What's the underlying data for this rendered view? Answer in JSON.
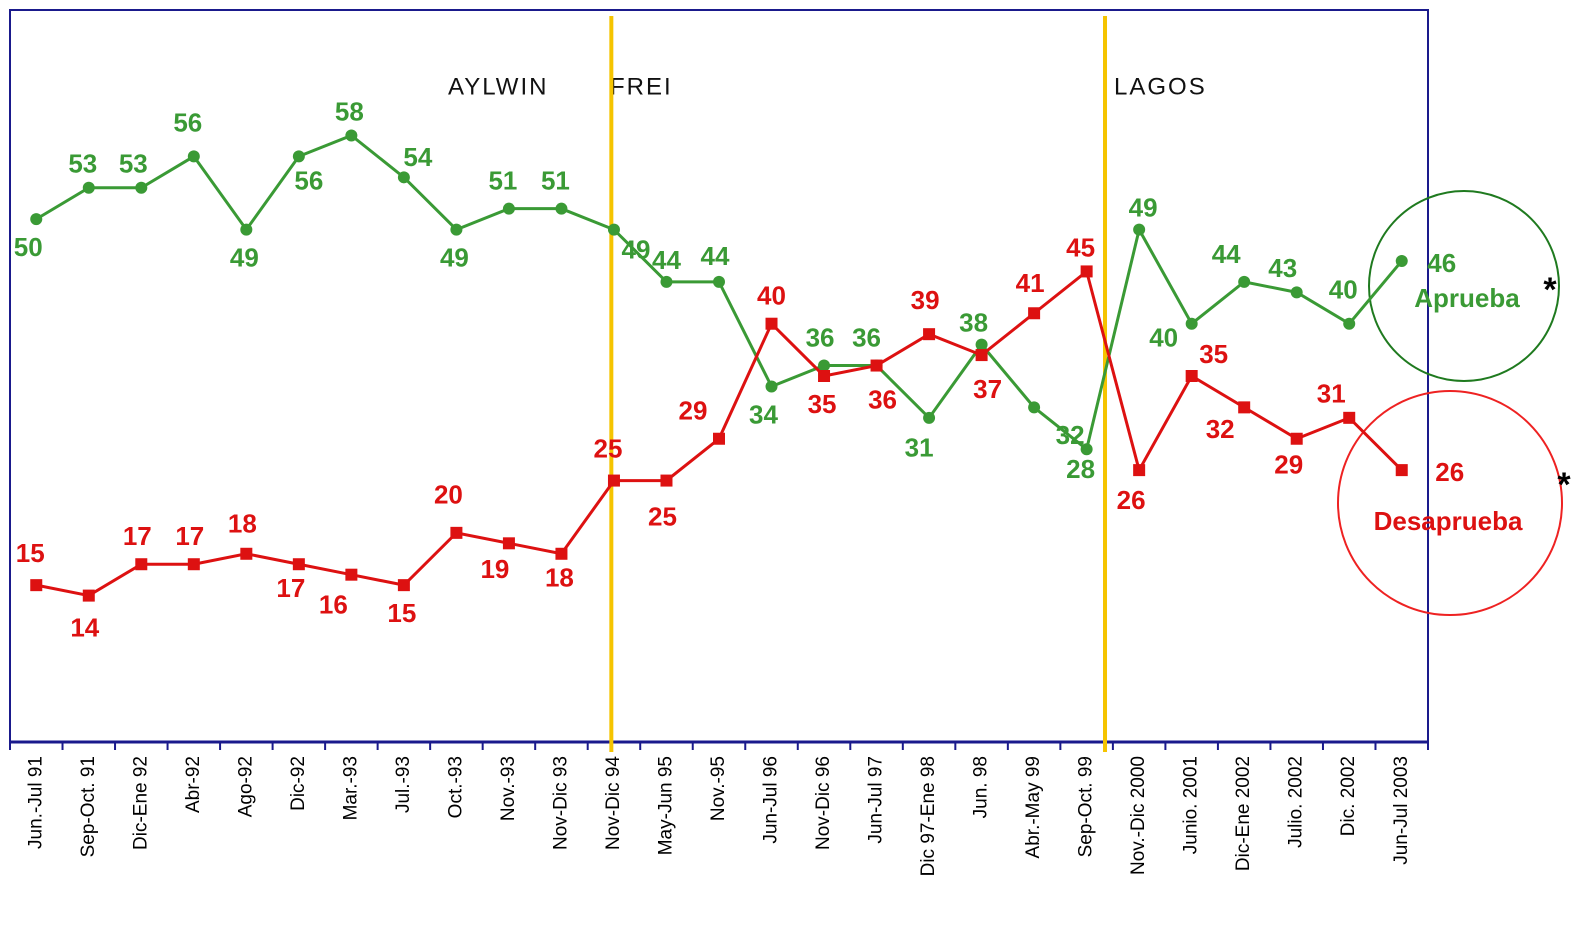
{
  "chart_data": {
    "type": "line",
    "categories": [
      "Jun.-Jul 91",
      "Sep-Oct. 91",
      "Dic-Ene 92",
      "Abr-92",
      "Ago-92",
      "Dic-92",
      "Mar.-93",
      "Jul.-93",
      "Oct.-93",
      "Nov.-93",
      "Nov-Dic 93",
      "Nov-Dic 94",
      "May-Jun 95",
      "Nov.-95",
      "Jun-Jul 96",
      "Nov-Dic 96",
      "Jun-Jul 97",
      "Dic 97-Ene 98",
      "Jun. 98",
      "Abr.-May 99",
      "Sep-Oct. 99",
      "Nov.-Dic 2000",
      "Junio. 2001",
      "Dic-Ene 2002",
      "Julio. 2002",
      "Dic. 2002",
      "Jun-Jul 2003"
    ],
    "series": [
      {
        "name": "Aprueba",
        "color": "#3a9a35",
        "marker": "circle",
        "values": [
          50,
          53,
          53,
          56,
          49,
          56,
          58,
          54,
          49,
          51,
          51,
          49,
          44,
          44,
          34,
          36,
          36,
          31,
          38,
          32,
          28,
          49,
          40,
          44,
          43,
          40,
          46
        ]
      },
      {
        "name": "Desaprueba",
        "color": "#dd1111",
        "marker": "square",
        "values": [
          15,
          14,
          17,
          17,
          18,
          17,
          16,
          15,
          20,
          19,
          18,
          25,
          25,
          29,
          40,
          35,
          36,
          39,
          37,
          41,
          45,
          26,
          35,
          32,
          29,
          31,
          26
        ]
      }
    ],
    "ylim": [
      0,
      70
    ],
    "annotations": [
      "AYLWIN",
      "FREI",
      "LAGOS"
    ],
    "footnote_mark": "*"
  }
}
